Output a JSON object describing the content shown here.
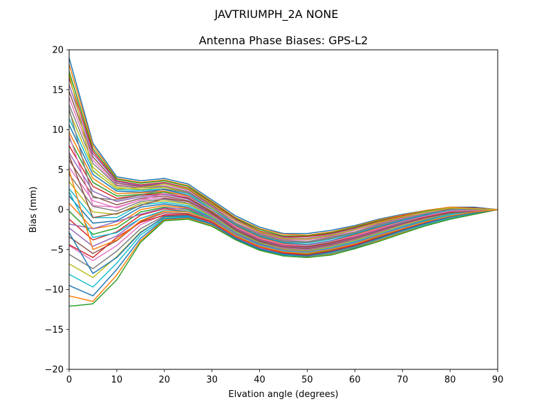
{
  "figure": {
    "suptitle": "JAVTRIUMPH_2A   NONE"
  },
  "chart_data": {
    "type": "line",
    "title": "Antenna Phase Biases: GPS-L2",
    "xlabel": "Elvation angle (degrees)",
    "ylabel": "Bias (mm)",
    "xlim": [
      0,
      90
    ],
    "ylim": [
      -20,
      20
    ],
    "xticks": [
      0,
      10,
      20,
      30,
      40,
      50,
      60,
      70,
      80,
      90
    ],
    "yticks": [
      -20,
      -15,
      -10,
      -5,
      0,
      5,
      10,
      15,
      20
    ],
    "xtick_labels": [
      "0",
      "10",
      "20",
      "30",
      "40",
      "50",
      "60",
      "70",
      "80",
      "90"
    ],
    "ytick_labels": [
      "−20",
      "−15",
      "−10",
      "−5",
      "0",
      "5",
      "10",
      "15",
      "20"
    ],
    "grid": false,
    "legend": "none",
    "colors": [
      "#1f77b4",
      "#ff7f0e",
      "#2ca02c",
      "#d62728",
      "#9467bd",
      "#8c564b",
      "#e377c2",
      "#7f7f7f",
      "#bcbd22",
      "#17becf"
    ],
    "x": [
      0,
      5,
      10,
      15,
      20,
      25,
      30,
      35,
      40,
      45,
      50,
      55,
      60,
      65,
      70,
      75,
      80,
      85,
      90
    ],
    "series": [
      {
        "values": [
          19.0,
          8.3,
          4.1,
          3.6,
          3.9,
          3.2,
          1.2,
          -0.8,
          -2.2,
          -3.0,
          -3.0,
          -2.6,
          -2.0,
          -1.2,
          -0.6,
          -0.1,
          0.3,
          0.3,
          0.0
        ]
      },
      {
        "values": [
          18.2,
          8.0,
          3.9,
          3.4,
          3.7,
          3.0,
          1.0,
          -1.0,
          -2.4,
          -3.1,
          -3.2,
          -2.8,
          -2.1,
          -1.3,
          -0.7,
          -0.1,
          0.3,
          0.2,
          0.0
        ]
      },
      {
        "values": [
          17.3,
          7.6,
          3.8,
          3.3,
          3.6,
          2.9,
          0.9,
          -1.1,
          -2.5,
          -3.3,
          -3.3,
          -2.9,
          -2.2,
          -1.4,
          -0.8,
          -0.2,
          0.2,
          0.2,
          0.0
        ]
      },
      {
        "values": [
          16.5,
          7.3,
          3.6,
          3.1,
          3.4,
          2.7,
          0.8,
          -1.2,
          -2.7,
          -3.4,
          -3.4,
          -3.0,
          -2.3,
          -1.5,
          -0.8,
          -0.3,
          0.2,
          0.2,
          0.0
        ]
      },
      {
        "values": [
          15.6,
          7.0,
          3.5,
          3.0,
          3.3,
          2.6,
          0.6,
          -1.3,
          -2.8,
          -3.5,
          -3.6,
          -3.1,
          -2.4,
          -1.6,
          -0.9,
          -0.3,
          0.1,
          0.1,
          0.0
        ]
      },
      {
        "values": [
          14.8,
          6.6,
          3.3,
          2.9,
          3.2,
          2.5,
          0.5,
          -1.4,
          -2.9,
          -3.7,
          -3.7,
          -3.3,
          -2.5,
          -1.7,
          -1.0,
          -0.4,
          0.1,
          0.1,
          0.0
        ]
      },
      {
        "values": [
          14.0,
          6.2,
          3.1,
          2.8,
          3.0,
          2.3,
          0.4,
          -1.5,
          -3.0,
          -3.8,
          -3.8,
          -3.4,
          -2.6,
          -1.8,
          -1.1,
          -0.4,
          0.0,
          0.1,
          0.0
        ]
      },
      {
        "values": [
          13.1,
          5.8,
          3.0,
          2.7,
          2.9,
          2.2,
          0.3,
          -1.7,
          -3.1,
          -3.9,
          -4.0,
          -3.5,
          -2.8,
          -1.9,
          -1.2,
          -0.5,
          0.0,
          0.0,
          0.0
        ]
      },
      {
        "values": [
          12.3,
          5.3,
          2.8,
          2.5,
          2.8,
          2.1,
          0.1,
          -1.8,
          -3.2,
          -4.0,
          -4.1,
          -3.6,
          -2.9,
          -2.0,
          -1.2,
          -0.6,
          -0.1,
          0.0,
          0.0
        ]
      },
      {
        "values": [
          11.4,
          4.9,
          2.5,
          2.4,
          2.6,
          2.0,
          0.0,
          -1.9,
          -3.3,
          -4.1,
          -4.2,
          -3.7,
          -3.0,
          -2.1,
          -1.3,
          -0.6,
          -0.1,
          0.0,
          0.0
        ]
      },
      {
        "values": [
          10.6,
          4.4,
          2.3,
          2.2,
          2.5,
          1.8,
          -0.1,
          -2.0,
          -3.4,
          -4.2,
          -4.4,
          -3.9,
          -3.1,
          -2.2,
          -1.4,
          -0.7,
          -0.2,
          -0.1,
          0.0
        ]
      },
      {
        "values": [
          9.7,
          3.9,
          2.0,
          2.1,
          2.3,
          1.7,
          -0.2,
          -2.1,
          -3.5,
          -4.3,
          -4.5,
          -4.0,
          -3.2,
          -2.3,
          -1.5,
          -0.8,
          -0.2,
          -0.1,
          0.0
        ]
      },
      {
        "values": [
          8.9,
          3.4,
          1.7,
          1.9,
          2.2,
          1.5,
          -0.3,
          -2.2,
          -3.6,
          -4.4,
          -4.6,
          -4.1,
          -3.3,
          -2.4,
          -1.6,
          -0.8,
          -0.3,
          -0.1,
          0.0
        ]
      },
      {
        "values": [
          8.0,
          2.9,
          1.4,
          1.8,
          2.0,
          1.4,
          -0.4,
          -2.3,
          -3.7,
          -4.5,
          -4.7,
          -4.2,
          -3.4,
          -2.5,
          -1.7,
          -0.9,
          -0.3,
          -0.1,
          0.0
        ]
      },
      {
        "values": [
          7.1,
          2.3,
          1.0,
          1.6,
          1.9,
          1.3,
          -0.5,
          -2.4,
          -3.8,
          -4.6,
          -4.8,
          -4.3,
          -3.5,
          -2.6,
          -1.7,
          -1.0,
          -0.4,
          -0.2,
          0.0
        ]
      },
      {
        "values": [
          6.2,
          1.7,
          0.6,
          1.4,
          1.7,
          1.1,
          -0.6,
          -2.5,
          -3.9,
          -4.7,
          -4.9,
          -4.4,
          -3.6,
          -2.7,
          -1.8,
          -1.0,
          -0.4,
          -0.2,
          0.0
        ]
      },
      {
        "values": [
          5.3,
          1.1,
          0.2,
          1.2,
          1.5,
          1.0,
          -0.7,
          -2.6,
          -4.0,
          -4.8,
          -5.0,
          -4.5,
          -3.7,
          -2.8,
          -1.9,
          -1.1,
          -0.5,
          -0.2,
          0.0
        ]
      },
      {
        "values": [
          4.4,
          0.4,
          -0.2,
          1.0,
          1.3,
          0.8,
          -0.8,
          -2.7,
          -4.1,
          -4.9,
          -5.1,
          -4.6,
          -3.8,
          -2.9,
          -2.0,
          -1.2,
          -0.5,
          -0.2,
          0.0
        ]
      },
      {
        "values": [
          3.5,
          -0.3,
          -0.6,
          0.8,
          1.1,
          0.7,
          -0.9,
          -2.8,
          -4.2,
          -5.0,
          -5.2,
          -4.7,
          -3.9,
          -3.0,
          -2.0,
          -1.2,
          -0.6,
          -0.3,
          0.0
        ]
      },
      {
        "values": [
          2.6,
          -1.0,
          -1.0,
          0.6,
          0.9,
          0.5,
          -1.0,
          -2.9,
          -4.3,
          -5.1,
          -5.3,
          -4.8,
          -4.0,
          -3.1,
          -2.1,
          -1.3,
          -0.6,
          -0.3,
          0.0
        ]
      },
      {
        "values": [
          1.7,
          -1.7,
          -1.4,
          0.3,
          0.7,
          0.3,
          -1.1,
          -3.0,
          -4.3,
          -5.1,
          -5.4,
          -4.9,
          -4.1,
          -3.2,
          -2.2,
          -1.3,
          -0.7,
          -0.3,
          0.0
        ]
      },
      {
        "values": [
          0.8,
          -2.4,
          -1.9,
          0.0,
          0.5,
          0.2,
          -1.2,
          -3.1,
          -4.4,
          -5.2,
          -5.5,
          -5.0,
          -4.2,
          -3.3,
          -2.3,
          -1.4,
          -0.7,
          -0.3,
          0.0
        ]
      },
      {
        "values": [
          -0.2,
          -3.1,
          -2.3,
          -0.3,
          0.3,
          0.0,
          -1.3,
          -3.2,
          -4.5,
          -5.3,
          -5.6,
          -5.1,
          -4.3,
          -3.4,
          -2.4,
          -1.5,
          -0.8,
          -0.4,
          0.0
        ]
      },
      {
        "values": [
          -1.2,
          -3.8,
          -2.8,
          -0.7,
          0.1,
          -0.2,
          -1.4,
          -3.3,
          -4.6,
          -5.4,
          -5.7,
          -5.2,
          -4.4,
          -3.5,
          -2.5,
          -1.6,
          -0.8,
          -0.4,
          0.0
        ]
      },
      {
        "values": [
          -2.3,
          -4.6,
          -3.3,
          -1.1,
          -0.2,
          -0.3,
          -1.5,
          -3.4,
          -4.7,
          -5.5,
          -5.8,
          -5.3,
          -4.5,
          -3.6,
          -2.6,
          -1.7,
          -0.9,
          -0.4,
          0.0
        ]
      },
      {
        "values": [
          -3.4,
          -5.5,
          -3.9,
          -1.5,
          -0.4,
          -0.5,
          -1.6,
          -3.5,
          -4.8,
          -5.5,
          -5.8,
          -5.3,
          -4.6,
          -3.6,
          -2.6,
          -1.7,
          -0.9,
          -0.4,
          0.0
        ]
      },
      {
        "values": [
          -4.5,
          -6.4,
          -4.5,
          -1.9,
          -0.6,
          -0.6,
          -1.7,
          -3.5,
          -4.8,
          -5.6,
          -5.9,
          -5.4,
          -4.6,
          -3.7,
          -2.7,
          -1.8,
          -1.0,
          -0.5,
          0.0
        ]
      },
      {
        "values": [
          -5.6,
          -7.4,
          -5.2,
          -2.4,
          -0.8,
          -0.7,
          -1.8,
          -3.6,
          -4.9,
          -5.6,
          -5.9,
          -5.4,
          -4.7,
          -3.7,
          -2.7,
          -1.8,
          -1.0,
          -0.5,
          0.0
        ]
      },
      {
        "values": [
          -6.8,
          -8.5,
          -5.9,
          -2.8,
          -1.0,
          -0.8,
          -1.8,
          -3.6,
          -4.9,
          -5.7,
          -6.0,
          -5.5,
          -4.7,
          -3.8,
          -2.8,
          -1.9,
          -1.1,
          -0.5,
          0.0
        ]
      },
      {
        "values": [
          -8.1,
          -9.7,
          -6.7,
          -3.2,
          -1.1,
          -0.9,
          -1.9,
          -3.7,
          -5.0,
          -5.7,
          -6.0,
          -5.5,
          -4.8,
          -3.8,
          -2.8,
          -1.9,
          -1.1,
          -0.5,
          0.0
        ]
      },
      {
        "values": [
          -9.5,
          -10.8,
          -7.5,
          -3.6,
          -1.2,
          -1.0,
          -2.0,
          -3.7,
          -5.0,
          -5.8,
          -6.0,
          -5.6,
          -4.8,
          -3.9,
          -2.9,
          -2.0,
          -1.2,
          -0.6,
          0.0
        ]
      },
      {
        "values": [
          -10.8,
          -11.5,
          -8.2,
          -3.9,
          -1.3,
          -1.1,
          -2.0,
          -3.8,
          -5.1,
          -5.8,
          -6.0,
          -5.6,
          -4.9,
          -3.9,
          -2.9,
          -2.0,
          -1.2,
          -0.6,
          0.0
        ]
      },
      {
        "values": [
          -12.1,
          -11.8,
          -8.8,
          -4.1,
          -1.4,
          -1.2,
          -2.1,
          -3.8,
          -5.1,
          -5.8,
          -6.0,
          -5.7,
          -4.9,
          -4.0,
          -3.0,
          -2.0,
          -1.2,
          -0.6,
          0.0
        ]
      },
      {
        "values": [
          -4.4,
          -6.0,
          -3.5,
          -1.6,
          -0.7,
          -0.6,
          -1.6,
          -3.4,
          -4.7,
          -5.4,
          -5.7,
          -5.2,
          -4.5,
          -3.5,
          -2.5,
          -1.6,
          -0.9,
          -0.4,
          0.0
        ]
      },
      {
        "values": [
          -1.8,
          -2.4,
          -1.5,
          -0.6,
          0.2,
          0.1,
          -1.1,
          -3.0,
          -4.4,
          -5.1,
          -5.3,
          -4.9,
          -4.1,
          -3.2,
          -2.2,
          -1.4,
          -0.7,
          -0.3,
          0.0
        ]
      },
      {
        "values": [
          6.8,
          -1.0,
          -0.5,
          0.5,
          1.4,
          1.0,
          -0.5,
          -2.6,
          -4.0,
          -4.7,
          -4.9,
          -4.4,
          -3.6,
          -2.7,
          -1.8,
          -1.0,
          -0.4,
          -0.2,
          0.0
        ]
      },
      {
        "values": [
          9.3,
          0.5,
          0.3,
          1.2,
          2.0,
          1.6,
          -0.1,
          -2.2,
          -3.6,
          -4.4,
          -4.5,
          -4.0,
          -3.3,
          -2.4,
          -1.5,
          -0.8,
          -0.2,
          -0.1,
          0.0
        ]
      },
      {
        "values": [
          12.6,
          1.5,
          1.2,
          1.8,
          2.6,
          2.1,
          0.3,
          -1.8,
          -3.2,
          -4.0,
          -4.1,
          -3.6,
          -2.9,
          -2.0,
          -1.2,
          -0.5,
          0.0,
          0.0,
          0.0
        ]
      },
      {
        "values": [
          17.0,
          4.8,
          2.6,
          2.7,
          3.2,
          2.6,
          0.7,
          -1.4,
          -2.8,
          -3.6,
          -3.7,
          -3.2,
          -2.5,
          -1.6,
          -0.9,
          -0.3,
          0.2,
          0.1,
          0.0
        ]
      },
      {
        "values": [
          2.2,
          -3.5,
          -2.9,
          -1.1,
          -0.1,
          -0.2,
          -1.3,
          -3.2,
          -4.5,
          -5.2,
          -5.4,
          -5.0,
          -4.2,
          -3.3,
          -2.3,
          -1.4,
          -0.7,
          -0.3,
          0.0
        ]
      },
      {
        "values": [
          -2.9,
          -8.0,
          -6.0,
          -2.9,
          -0.9,
          -0.8,
          -1.8,
          -3.6,
          -4.9,
          -5.6,
          -5.8,
          -5.3,
          -4.6,
          -3.6,
          -2.6,
          -1.7,
          -0.9,
          -0.4,
          0.0
        ]
      },
      {
        "values": [
          4.9,
          -5.0,
          -3.8,
          -1.4,
          -0.2,
          -0.3,
          -1.4,
          -3.3,
          -4.6,
          -5.3,
          -5.5,
          -5.0,
          -4.3,
          -3.3,
          -2.4,
          -1.5,
          -0.8,
          -0.3,
          0.0
        ]
      }
    ]
  }
}
